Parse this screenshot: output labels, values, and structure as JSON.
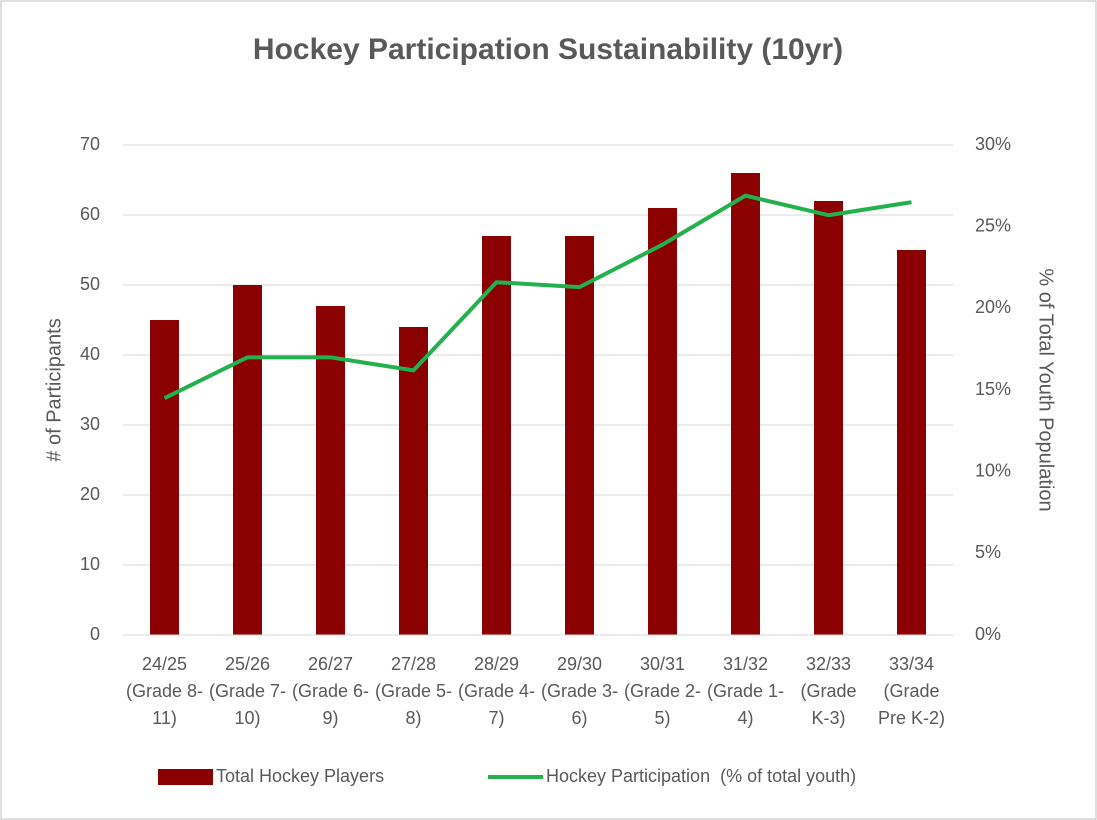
{
  "chart_data": {
    "type": "bar_line",
    "title": "Hockey Participation Sustainability (10yr)",
    "categories": [
      "24/25 (Grade 8-11)",
      "25/26 (Grade 7-10)",
      "26/27 (Grade 6-9)",
      "27/28 (Grade 5-8)",
      "28/29 (Grade 4-7)",
      "29/30 (Grade 3-6)",
      "30/31 (Grade 2-5)",
      "31/32 (Grade 1-4)",
      "32/33 (Grade K-3)",
      "33/34 (Grade Pre K-2)"
    ],
    "series": [
      {
        "name": "Total Hockey Players",
        "type": "bar",
        "color": "#8b0000",
        "values": [
          45,
          50,
          47,
          44,
          57,
          57,
          61,
          66,
          62,
          55
        ]
      },
      {
        "name": "Hockey Participation  (% of total youth)",
        "type": "line",
        "axis": "y2",
        "color": "#22b14c",
        "values": [
          14.5,
          17.0,
          17.0,
          16.2,
          21.6,
          21.3,
          23.9,
          26.9,
          25.7,
          26.5
        ]
      }
    ],
    "ylabel": "# of Participants",
    "y2label": "% of Total Youth Population",
    "ylim": [
      0,
      70
    ],
    "yticks": [
      0,
      10,
      20,
      30,
      40,
      50,
      60,
      70
    ],
    "y2lim": [
      0,
      30
    ],
    "y2ticks": [
      {
        "value": 0,
        "label": "0%"
      },
      {
        "value": 5,
        "label": "5%"
      },
      {
        "value": 10,
        "label": "10%"
      },
      {
        "value": 15,
        "label": "15%"
      },
      {
        "value": 20,
        "label": "20%"
      },
      {
        "value": 25,
        "label": "25%"
      },
      {
        "value": 30,
        "label": "30%"
      }
    ],
    "grid": true,
    "legend": "bottom"
  }
}
